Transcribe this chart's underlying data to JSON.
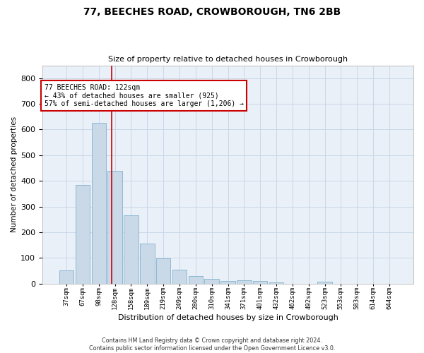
{
  "title": "77, BEECHES ROAD, CROWBOROUGH, TN6 2BB",
  "subtitle": "Size of property relative to detached houses in Crowborough",
  "xlabel": "Distribution of detached houses by size in Crowborough",
  "ylabel": "Number of detached properties",
  "categories": [
    "37sqm",
    "67sqm",
    "98sqm",
    "128sqm",
    "158sqm",
    "189sqm",
    "219sqm",
    "249sqm",
    "280sqm",
    "310sqm",
    "341sqm",
    "371sqm",
    "401sqm",
    "432sqm",
    "462sqm",
    "492sqm",
    "523sqm",
    "553sqm",
    "583sqm",
    "614sqm",
    "644sqm"
  ],
  "values": [
    50,
    385,
    625,
    440,
    265,
    155,
    97,
    55,
    28,
    18,
    10,
    12,
    10,
    5,
    0,
    0,
    7,
    0,
    0,
    0,
    0
  ],
  "bar_color": "#c9d9e8",
  "bar_edge_color": "#6fa8c8",
  "bar_edge_width": 0.5,
  "grid_color": "#c8d8e8",
  "background_color": "#eaf0f8",
  "vline_x_index": 2.8,
  "vline_color": "#cc0000",
  "annotation_text": "77 BEECHES ROAD: 122sqm\n← 43% of detached houses are smaller (925)\n57% of semi-detached houses are larger (1,206) →",
  "annotation_box_color": "#cc0000",
  "ylim": [
    0,
    850
  ],
  "yticks": [
    0,
    100,
    200,
    300,
    400,
    500,
    600,
    700,
    800
  ],
  "footer_line1": "Contains HM Land Registry data © Crown copyright and database right 2024.",
  "footer_line2": "Contains public sector information licensed under the Open Government Licence v3.0."
}
